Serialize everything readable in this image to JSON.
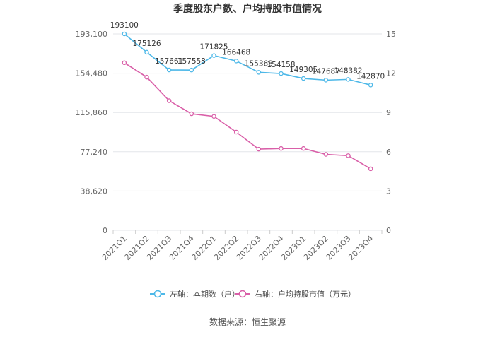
{
  "chart_data": {
    "type": "line",
    "title": "季度股东户数、户均持股市值情况",
    "source_label": "数据来源：恒生聚源",
    "categories": [
      "2021Q1",
      "2021Q2",
      "2021Q3",
      "2021Q4",
      "2022Q1",
      "2022Q2",
      "2022Q3",
      "2022Q4",
      "2023Q1",
      "2023Q2",
      "2023Q3",
      "2023Q4"
    ],
    "left_axis": {
      "ticks": [
        0,
        38620,
        77240,
        115860,
        154480,
        193100
      ],
      "tick_labels": [
        "0",
        "38,620",
        "77,240",
        "115,860",
        "154,480",
        "193,100"
      ],
      "ylim": [
        0,
        193100
      ]
    },
    "right_axis": {
      "ticks": [
        0,
        3,
        6,
        9,
        12,
        15
      ],
      "tick_labels": [
        "0",
        "3",
        "6",
        "9",
        "12",
        "15"
      ],
      "ylim": [
        0,
        15
      ]
    },
    "series": [
      {
        "name": "左轴：本期数（户）",
        "axis": "left",
        "color": "#4db8e8",
        "values": [
          193100,
          175126,
          157661,
          157558,
          171825,
          166468,
          155368,
          154158,
          149305,
          147687,
          148382,
          142870
        ],
        "data_labels": [
          "193100",
          "175126",
          "157661",
          "157558",
          "171825",
          "166468",
          "155368",
          "154158",
          "149305",
          "147687",
          "148382",
          "142870"
        ]
      },
      {
        "name": "右轴：户均持股市值（万元）",
        "axis": "right",
        "color": "#d95fa8",
        "values": [
          12.8,
          11.7,
          9.9,
          8.9,
          8.7,
          7.5,
          6.2,
          6.25,
          6.25,
          5.8,
          5.7,
          4.7
        ]
      }
    ],
    "grid": true,
    "legend_position": "bottom"
  }
}
